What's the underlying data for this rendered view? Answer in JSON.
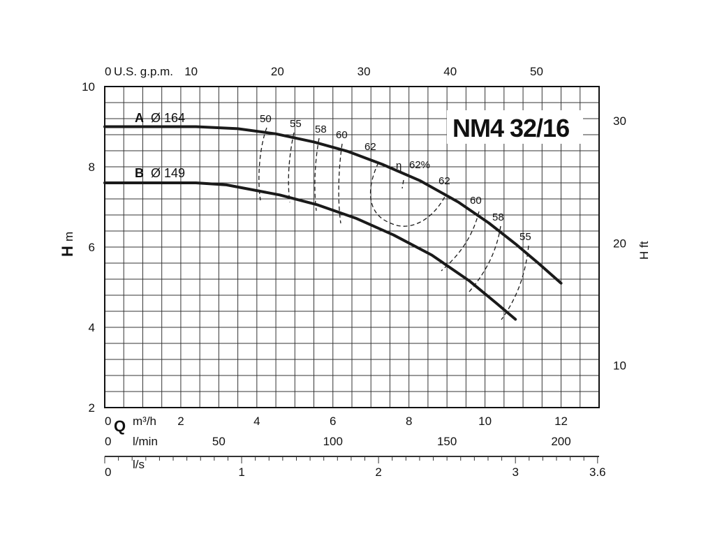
{
  "chart_data": {
    "type": "line",
    "title": "NM4 32/16",
    "ylabel_left_symbol": "H",
    "ylabel_left_unit": "m",
    "ylabel_right": "H ft",
    "flow_symbol": "Q",
    "axes": {
      "m3h": {
        "label": "m³/h",
        "ticks": [
          "0",
          "2",
          "4",
          "6",
          "8",
          "10",
          "12"
        ],
        "range": [
          0,
          13
        ]
      },
      "lmin": {
        "label": "l/min",
        "ticks": [
          "0",
          "50",
          "100",
          "150",
          "200"
        ]
      },
      "ls": {
        "label": "l/s",
        "ticks": [
          "0",
          "1",
          "2",
          "3",
          "3.6"
        ]
      },
      "gpm": {
        "label": "U.S. g.p.m.",
        "ticks": [
          "0",
          "10",
          "20",
          "30",
          "40",
          "50"
        ]
      },
      "head_m": {
        "ticks": [
          "2",
          "4",
          "6",
          "8",
          "10"
        ],
        "range": [
          2,
          10
        ]
      },
      "head_ft": {
        "ticks": [
          "10",
          "20",
          "30"
        ]
      }
    },
    "grid": true,
    "series": [
      {
        "name": "A",
        "diameter": "Ø 164",
        "x": [
          0,
          2.4,
          3.5,
          4.5,
          5.5,
          6.4,
          7.3,
          8.3,
          9.3,
          10.1,
          10.8,
          11.4,
          12.0
        ],
        "y": [
          9.0,
          9.0,
          8.95,
          8.82,
          8.62,
          8.38,
          8.06,
          7.65,
          7.12,
          6.6,
          6.08,
          5.6,
          5.1
        ]
      },
      {
        "name": "B",
        "diameter": "Ø 149",
        "x": [
          0,
          2.4,
          3.2,
          4.6,
          5.6,
          6.6,
          7.6,
          8.6,
          9.6,
          10.3,
          10.8
        ],
        "y": [
          7.6,
          7.6,
          7.55,
          7.3,
          7.05,
          6.72,
          6.3,
          5.8,
          5.15,
          4.6,
          4.2
        ]
      }
    ],
    "efficiency": {
      "symbol": "η",
      "best_label": "62%",
      "labels": [
        "50",
        "55",
        "58",
        "60",
        "62",
        "62",
        "60",
        "58",
        "55"
      ]
    }
  }
}
